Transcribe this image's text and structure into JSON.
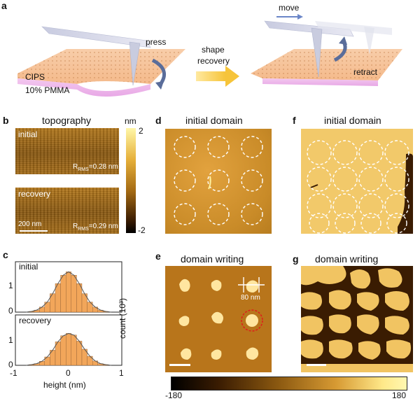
{
  "panels": {
    "a": {
      "label": "a",
      "press": "press",
      "arrow_text_1": "shape",
      "arrow_text_2": "recovery",
      "move": "move",
      "retract": "retract",
      "layer_top": "CIPS",
      "layer_bottom": "10% PMMA"
    },
    "b": {
      "label": "b",
      "title": "topography",
      "unit": "nm",
      "scale_max": "2",
      "scale_min": "-2",
      "initial_tag": "initial",
      "recovery_tag": "recovery",
      "rms_initial": "=0.28 nm",
      "rms_recovery": "=0.29 nm",
      "rms_symbol": "R",
      "rms_sub": "RMS",
      "scalebar": "200 nm"
    },
    "c": {
      "label": "c",
      "initial_tag": "initial",
      "recovery_tag": "recovery",
      "ylabel": "count (10³)",
      "xlabel": "height (nm)",
      "xticks": [
        "-1",
        "0",
        "1"
      ],
      "yticks_top": [
        "0",
        "1"
      ],
      "yticks_bottom": [
        "0",
        "1"
      ]
    },
    "d": {
      "label": "d",
      "title": "initial domain"
    },
    "e": {
      "label": "e",
      "title": "domain writing",
      "dim_label": "80 nm"
    },
    "f": {
      "label": "f",
      "title": "initial domain"
    },
    "g": {
      "label": "g",
      "title": "domain writing"
    },
    "colorbar": {
      "min": "-180",
      "max": "180"
    }
  },
  "chart_data": [
    {
      "type": "bar",
      "name": "initial",
      "x": [
        -0.8,
        -0.7,
        -0.6,
        -0.5,
        -0.4,
        -0.3,
        -0.2,
        -0.1,
        0,
        0.1,
        0.2,
        0.3,
        0.4,
        0.5,
        0.6,
        0.7,
        0.8
      ],
      "values": [
        0.0,
        0.02,
        0.06,
        0.15,
        0.3,
        0.55,
        0.85,
        1.1,
        1.2,
        1.1,
        0.85,
        0.55,
        0.3,
        0.15,
        0.06,
        0.02,
        0.0
      ],
      "xlabel": "height (nm)",
      "ylabel": "count (10³)",
      "xlim": [
        -1,
        1
      ],
      "ylim": [
        0,
        1.5
      ]
    },
    {
      "type": "bar",
      "name": "recovery",
      "x": [
        -0.8,
        -0.7,
        -0.6,
        -0.5,
        -0.4,
        -0.3,
        -0.2,
        -0.1,
        0,
        0.1,
        0.2,
        0.3,
        0.4,
        0.5,
        0.6,
        0.7,
        0.8
      ],
      "values": [
        0.0,
        0.02,
        0.05,
        0.12,
        0.25,
        0.45,
        0.7,
        0.88,
        0.95,
        0.9,
        0.72,
        0.48,
        0.27,
        0.13,
        0.05,
        0.02,
        0.0
      ],
      "xlabel": "height (nm)",
      "ylabel": "count (10³)",
      "xlim": [
        -1,
        1
      ],
      "ylim": [
        0,
        1.5
      ]
    }
  ],
  "colors": {
    "orange": "#f2a65a",
    "yellow_bright": "#ffe98a",
    "brown_dark": "#3a1c02",
    "arrow_blue": "#5a6d9a"
  }
}
